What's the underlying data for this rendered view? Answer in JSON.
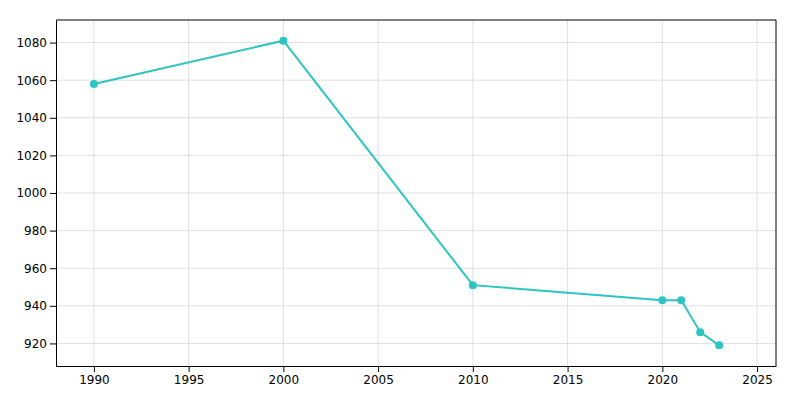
{
  "chart_data": {
    "type": "line",
    "x": [
      1990,
      2000,
      2010,
      2020,
      2021,
      2022,
      2023
    ],
    "values": [
      1058,
      1081,
      951,
      943,
      943,
      926,
      919
    ],
    "color": "#2EC4C4",
    "marker": "circle",
    "xlim": [
      1988,
      2026
    ],
    "ylim": [
      908,
      1092
    ],
    "xticks": [
      1990,
      1995,
      2000,
      2005,
      2010,
      2015,
      2020,
      2025
    ],
    "yticks": [
      920,
      940,
      960,
      980,
      1000,
      1020,
      1040,
      1060,
      1080
    ],
    "grid": true
  }
}
